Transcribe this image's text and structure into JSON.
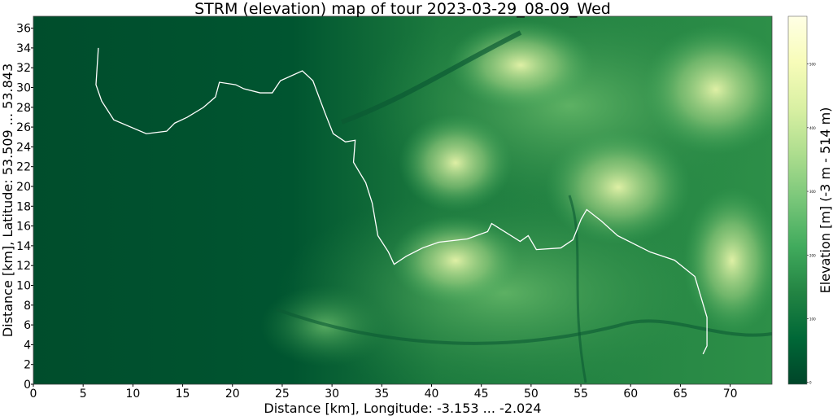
{
  "chart_data": {
    "type": "map",
    "title": "STRM (elevation) map of tour 2023-03-29_08-09_Wed",
    "xlabel": "Distance [km], Longitude: -3.153 ... -2.024",
    "ylabel": "Distance [km], Latitude: 53.509 ... 53.843",
    "xlim": [
      0,
      74.2
    ],
    "ylim": [
      0,
      37.2
    ],
    "xticks": [
      0,
      5,
      10,
      15,
      20,
      25,
      30,
      35,
      40,
      45,
      50,
      55,
      60,
      65,
      70
    ],
    "yticks": [
      0,
      2,
      4,
      6,
      8,
      10,
      12,
      14,
      16,
      18,
      20,
      22,
      24,
      26,
      28,
      30,
      32,
      34,
      36
    ],
    "grid": false,
    "colormap": "YlGn_r",
    "colorbar": {
      "label": "Elevation [m] (-3 m - 514 m)",
      "range": [
        -3,
        575
      ],
      "ticks": [
        0,
        100,
        200,
        300,
        400,
        500
      ],
      "colors": [
        "#004529",
        "#006837",
        "#238443",
        "#41ab5d",
        "#78c679",
        "#addd8e",
        "#d9f0a3",
        "#f7fcb9",
        "#ffffe5"
      ]
    },
    "track_color": "#ffffff",
    "track": [
      [
        6.53,
        34.0
      ],
      [
        6.29,
        30.28
      ],
      [
        6.86,
        28.63
      ],
      [
        8.08,
        26.73
      ],
      [
        11.35,
        25.33
      ],
      [
        13.39,
        25.58
      ],
      [
        14.2,
        26.4
      ],
      [
        15.43,
        26.98
      ],
      [
        17.06,
        27.97
      ],
      [
        18.29,
        29.04
      ],
      [
        18.69,
        30.53
      ],
      [
        20.33,
        30.28
      ],
      [
        21.14,
        29.87
      ],
      [
        22.78,
        29.46
      ],
      [
        24.0,
        29.46
      ],
      [
        24.82,
        30.69
      ],
      [
        27.02,
        31.68
      ],
      [
        28.08,
        30.69
      ],
      [
        29.31,
        27.39
      ],
      [
        30.12,
        25.33
      ],
      [
        31.35,
        24.5
      ],
      [
        32.33,
        24.67
      ],
      [
        32.16,
        22.44
      ],
      [
        33.39,
        20.38
      ],
      [
        34.04,
        18.32
      ],
      [
        34.61,
        15.02
      ],
      [
        35.67,
        13.37
      ],
      [
        36.24,
        12.13
      ],
      [
        37.47,
        12.95
      ],
      [
        39.1,
        13.78
      ],
      [
        40.73,
        14.36
      ],
      [
        43.59,
        14.69
      ],
      [
        45.63,
        15.43
      ],
      [
        46.04,
        16.25
      ],
      [
        48.9,
        14.44
      ],
      [
        49.71,
        15.02
      ],
      [
        50.53,
        13.61
      ],
      [
        52.98,
        13.78
      ],
      [
        54.2,
        14.6
      ],
      [
        55.02,
        16.67
      ],
      [
        55.59,
        17.66
      ],
      [
        57.06,
        16.5
      ],
      [
        58.69,
        15.02
      ],
      [
        61.96,
        13.37
      ],
      [
        64.41,
        12.54
      ],
      [
        66.45,
        10.89
      ],
      [
        67.67,
        6.77
      ],
      [
        67.67,
        3.88
      ],
      [
        67.27,
        3.05
      ]
    ]
  }
}
